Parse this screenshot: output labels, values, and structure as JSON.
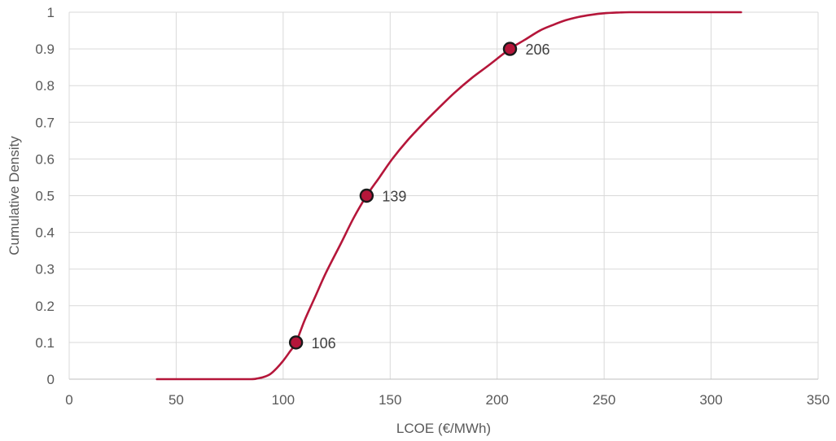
{
  "chart_data": {
    "type": "line",
    "title": "",
    "xlabel": "LCOE (€/MWh)",
    "ylabel": "Cumulative Density",
    "xlim": [
      0,
      350
    ],
    "ylim": [
      0,
      1
    ],
    "xticks": [
      0,
      50,
      100,
      150,
      200,
      250,
      300,
      350
    ],
    "yticks": [
      0,
      0.1,
      0.2,
      0.3,
      0.4,
      0.5,
      0.6,
      0.7,
      0.8,
      0.9,
      1
    ],
    "ytick_labels": [
      "0",
      "0.1",
      "0.2",
      "0.3",
      "0.4",
      "0.5",
      "0.6",
      "0.7",
      "0.8",
      "0.9",
      "1"
    ],
    "grid": true,
    "series": [
      {
        "color": "#b5163a",
        "x": [
          41,
          60,
          75,
          85,
          88,
          91,
          94,
          97,
          100,
          103,
          106,
          110,
          115,
          120,
          127,
          133,
          139,
          145,
          151,
          158,
          166,
          172,
          180,
          188,
          196,
          206,
          213,
          220,
          226,
          232,
          238,
          244,
          250,
          256,
          262,
          270,
          290,
          314
        ],
        "y": [
          0,
          0,
          0,
          0,
          0.002,
          0.006,
          0.014,
          0.03,
          0.05,
          0.074,
          0.1,
          0.16,
          0.225,
          0.29,
          0.37,
          0.44,
          0.5,
          0.55,
          0.6,
          0.65,
          0.7,
          0.735,
          0.78,
          0.82,
          0.855,
          0.9,
          0.925,
          0.95,
          0.965,
          0.978,
          0.987,
          0.993,
          0.997,
          0.999,
          1,
          1,
          1,
          1
        ]
      }
    ],
    "markers": [
      {
        "x": 106,
        "y": 0.1,
        "label": "106"
      },
      {
        "x": 139,
        "y": 0.5,
        "label": "139"
      },
      {
        "x": 206,
        "y": 0.9,
        "label": "206"
      }
    ],
    "marker_color": "#b5163a",
    "marker_edge": "#1a1a1a"
  }
}
